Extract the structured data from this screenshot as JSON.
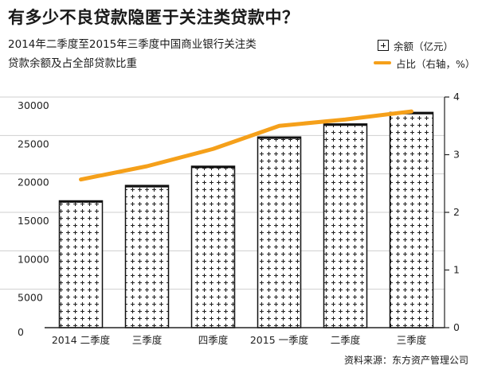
{
  "title": "有多少不良贷款隐匿于关注类贷款中？",
  "subtitle_lines": [
    "2014年二季度至2015年三季度中国商业银行关注类",
    "贷款余额及占全部贷款比重"
  ],
  "legend": {
    "bar_label": "余额（亿元）",
    "line_label": "占比（右轴，%）"
  },
  "source": "资料来源：东方资产管理公司",
  "colors": {
    "line": "#f5a01a",
    "bar_border": "#111111",
    "pattern": "#222222"
  },
  "chart_data": {
    "type": "bar",
    "categories": [
      "2014 二季度",
      "三季度",
      "四季度",
      "2015 一季度",
      "二季度",
      "三季度"
    ],
    "series": [
      {
        "name": "余额（亿元）",
        "type": "bar",
        "axis": "left",
        "values": [
          16500,
          18500,
          21000,
          24800,
          26500,
          28000
        ]
      },
      {
        "name": "占比（右轴，%）",
        "type": "line",
        "axis": "right",
        "values": [
          2.57,
          2.8,
          3.1,
          3.5,
          3.61,
          3.75
        ]
      }
    ],
    "y_left": {
      "min": 0,
      "max": 30000,
      "ticks": [
        0,
        5000,
        10000,
        15000,
        20000,
        25000,
        30000
      ]
    },
    "y_right": {
      "min": 0,
      "max": 4,
      "ticks": [
        0,
        1,
        2,
        3,
        4
      ]
    }
  }
}
